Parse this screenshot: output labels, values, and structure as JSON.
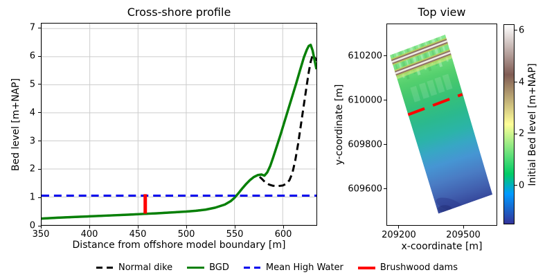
{
  "chart_data": [
    {
      "type": "line",
      "title": "Cross-shore profile",
      "xlabel": "Distance from offshore model boundary [m]",
      "ylabel": "Bed level [m+NAP]",
      "xlim": [
        350,
        635
      ],
      "ylim": [
        0,
        7.18
      ],
      "xticks": [
        350,
        400,
        450,
        500,
        550,
        600
      ],
      "yticks": [
        0,
        1,
        2,
        3,
        4,
        5,
        6,
        7
      ],
      "grid": true,
      "grid_color": "#cccccc",
      "series": [
        {
          "name": "Normal dike",
          "color": "#000000",
          "width": 3,
          "dash": [
            10,
            6
          ],
          "x": [
            350,
            365,
            385,
            400,
            420,
            440,
            457,
            470,
            485,
            500,
            510,
            520,
            530,
            540,
            546,
            550,
            554,
            558,
            562,
            566,
            570,
            574,
            578,
            582,
            586,
            590,
            595,
            600,
            604,
            607,
            610,
            613,
            616,
            619,
            622,
            625,
            627,
            629,
            631,
            633,
            635
          ],
          "y": [
            0.23,
            0.26,
            0.29,
            0.31,
            0.34,
            0.37,
            0.4,
            0.42,
            0.45,
            0.48,
            0.51,
            0.55,
            0.62,
            0.73,
            0.85,
            0.97,
            1.13,
            1.3,
            1.46,
            1.6,
            1.71,
            1.78,
            1.66,
            1.52,
            1.44,
            1.4,
            1.39,
            1.41,
            1.48,
            1.6,
            1.85,
            2.3,
            2.9,
            3.6,
            4.3,
            5.0,
            5.45,
            5.82,
            6.05,
            6.0,
            5.85
          ]
        },
        {
          "name": "BGD",
          "color": "#088008",
          "width": 3.5,
          "dash": null,
          "x": [
            350,
            365,
            385,
            400,
            420,
            440,
            457,
            470,
            485,
            500,
            510,
            520,
            530,
            540,
            546,
            550,
            554,
            558,
            562,
            566,
            570,
            574,
            578,
            581,
            584,
            587,
            590,
            594,
            598,
            602,
            606,
            610,
            614,
            618,
            622,
            625,
            627,
            629,
            631,
            633,
            635
          ],
          "y": [
            0.23,
            0.26,
            0.29,
            0.31,
            0.34,
            0.37,
            0.4,
            0.42,
            0.45,
            0.48,
            0.51,
            0.55,
            0.62,
            0.73,
            0.85,
            0.97,
            1.13,
            1.3,
            1.46,
            1.6,
            1.71,
            1.78,
            1.8,
            1.76,
            1.88,
            2.1,
            2.4,
            2.82,
            3.25,
            3.7,
            4.15,
            4.6,
            5.05,
            5.52,
            5.98,
            6.25,
            6.38,
            6.42,
            6.22,
            5.88,
            5.55
          ]
        },
        {
          "name": "Mean High Water",
          "color": "#0000ee",
          "width": 3,
          "dash": [
            11,
            7
          ],
          "x": [
            350,
            635
          ],
          "y": [
            1.05,
            1.05
          ]
        },
        {
          "name": "Brushwood dams",
          "color": "#ff0000",
          "width": 5,
          "dash": null,
          "x": [
            457.5,
            457.5
          ],
          "y": [
            0.41,
            1.1
          ]
        }
      ]
    },
    {
      "type": "heatmap",
      "title": "Top view",
      "xlabel": "x-coordinate [m]",
      "ylabel": "y-coordinate [m]",
      "xlim": [
        209142,
        209658
      ],
      "ylim": [
        609433,
        610347
      ],
      "xticks": [
        209200,
        209500
      ],
      "yticks": [
        609600,
        609800,
        610000,
        610200
      ],
      "domain_corners": [
        [
          209155,
          610206
        ],
        [
          209416,
          610300
        ],
        [
          209639,
          609572
        ],
        [
          209384,
          609485
        ]
      ],
      "bed_level_gradient": [
        {
          "at": 0.0,
          "color": "#86e88e"
        },
        {
          "at": 0.07,
          "color": "#7ce287"
        },
        {
          "at": 0.13,
          "color": "#6cdc7a"
        },
        {
          "at": 0.2,
          "color": "#55d06e"
        },
        {
          "at": 0.27,
          "color": "#46c86e"
        },
        {
          "at": 0.36,
          "color": "#35c078"
        },
        {
          "at": 0.46,
          "color": "#2bb98e"
        },
        {
          "at": 0.56,
          "color": "#2bb4a8"
        },
        {
          "at": 0.64,
          "color": "#37a7c4"
        },
        {
          "at": 0.73,
          "color": "#4695d3"
        },
        {
          "at": 0.83,
          "color": "#4a7cc4"
        },
        {
          "at": 0.93,
          "color": "#415fae"
        },
        {
          "at": 1.0,
          "color": "#36489b"
        }
      ],
      "dike_ridges": [
        {
          "from": [
            209150,
            610170
          ],
          "to": [
            209470,
            610287
          ]
        },
        {
          "from": [
            209155,
            610114
          ],
          "to": [
            209475,
            610231
          ]
        }
      ],
      "ridge_colors": {
        "outer": "#b9cf5e",
        "slope": "#8e7366",
        "crest": "#efeae6"
      },
      "brushwood_dam_line": {
        "from": [
          209240,
          609935
        ],
        "to": [
          209497,
          610028
        ],
        "color": "#ff0000",
        "width": 4,
        "dash": [
          26,
          13
        ]
      },
      "colorbar": {
        "label": "Initial Bed level [m+NAP]",
        "vmin": -1.5,
        "vmax": 6.24,
        "ticks": [
          0,
          2,
          4,
          6
        ],
        "colormap": "terrain",
        "stops": [
          {
            "t": 0.0,
            "color": "#333399"
          },
          {
            "t": 0.15,
            "color": "#0099ff"
          },
          {
            "t": 0.25,
            "color": "#00cc66"
          },
          {
            "t": 0.5,
            "color": "#ffff99"
          },
          {
            "t": 0.75,
            "color": "#805c54"
          },
          {
            "t": 1.0,
            "color": "#ffffff"
          }
        ]
      }
    }
  ],
  "legend": {
    "items": [
      {
        "label": "Normal dike",
        "color": "#000000",
        "style": "dashed"
      },
      {
        "label": "BGD",
        "color": "#088008",
        "style": "solid"
      },
      {
        "label": "Mean High Water",
        "color": "#0000ee",
        "style": "dashed"
      },
      {
        "label": "Brushwood dams",
        "color": "#ff0000",
        "style": "solid"
      }
    ]
  }
}
